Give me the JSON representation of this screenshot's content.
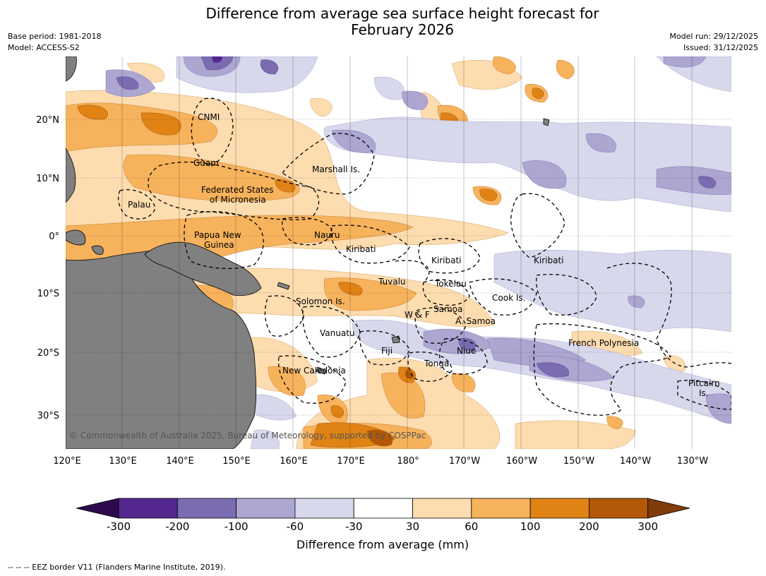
{
  "title_line1": "Difference from average sea surface height forecast for",
  "title_line2": "February 2026",
  "meta": {
    "base_period": "Base period: 1981-2018",
    "model": "Model: ACCESS-S2",
    "model_run": "Model run: 29/12/2025",
    "issued": "Issued: 31/12/2025"
  },
  "lon_labels": [
    "120°E",
    "130°E",
    "140°E",
    "150°E",
    "160°E",
    "170°E",
    "180°",
    "170°W",
    "160°W",
    "150°W",
    "140°W",
    "130°W"
  ],
  "lat_labels": [
    "20°N",
    "10°N",
    "0°",
    "10°S",
    "20°S",
    "30°S"
  ],
  "places": [
    "CNMI",
    "Guam",
    "Marshall Is.",
    "Federated States",
    "of Micronesia",
    "Palau",
    "Papua New",
    "Guinea",
    "Nauru",
    "Kiribati",
    "Kiribati",
    "Kiribati",
    "Tuvalu",
    "Tokelau",
    "Cook Is.",
    "Solomon Is.",
    "W & F",
    "Samoa",
    "A. Samoa",
    "Vanuatu",
    "Fiji",
    "Niue",
    "French Polynesia",
    "Tonga",
    "New Caledonia",
    "Pitcairn",
    "Is."
  ],
  "copyright": "© Commonwealth of Australia 2025, Bureau of Meteorology, supported by COSPPac",
  "colorbar": {
    "ticks": [
      "-300",
      "-200",
      "-100",
      "-60",
      "-30",
      "30",
      "60",
      "100",
      "200",
      "300"
    ],
    "colors": [
      "#2d0a4e",
      "#54278f",
      "#7b6bb0",
      "#aca6d1",
      "#d8d8ec",
      "#ffffff",
      "#fddcaf",
      "#f7b25c",
      "#e08214",
      "#b35806",
      "#7f3b08"
    ],
    "title": "Difference from average (mm)"
  },
  "footer": "--  --  -- EEZ border V11 (Flanders Marine Institute, 2019)."
}
